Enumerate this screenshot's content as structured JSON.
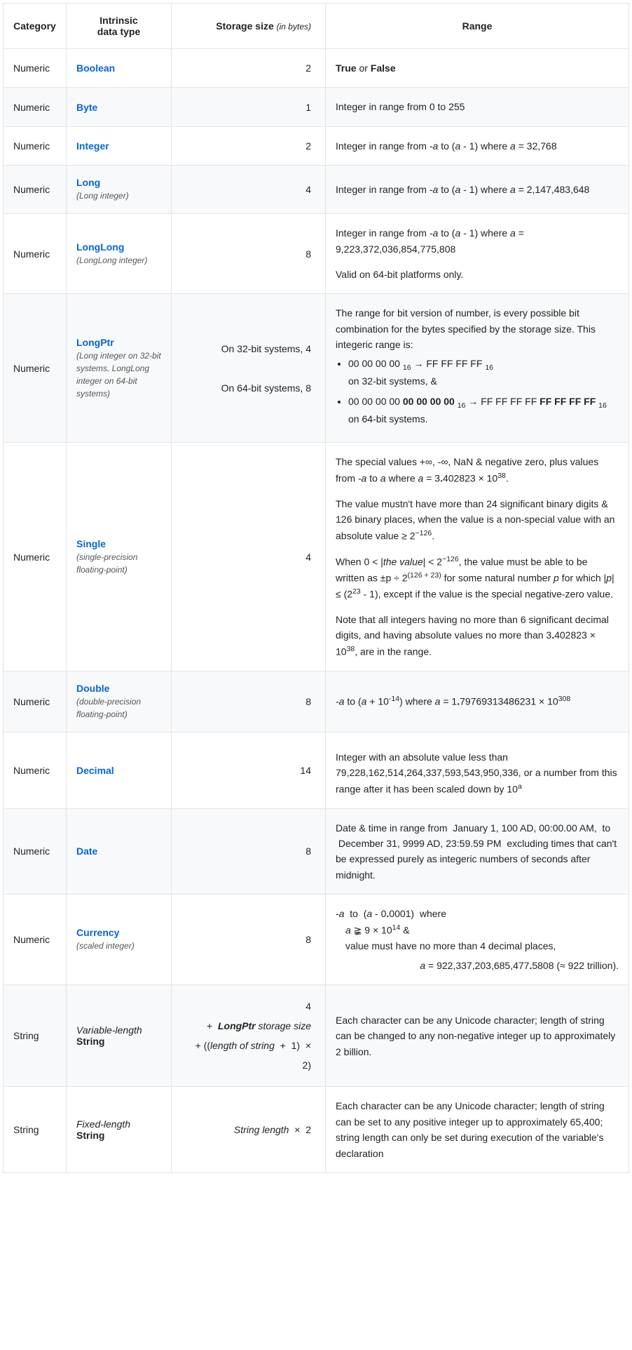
{
  "headers": {
    "category": "Category",
    "datatype_line1": "Intrinsic",
    "datatype_line2": "data type",
    "storage": "Storage size ",
    "storage_suffix": "(in bytes)",
    "range": "Range"
  },
  "rows": [
    {
      "category": "Numeric",
      "type_link": "Boolean",
      "type_sub": "",
      "storage_html": "2",
      "range_html": "<span class='bold'>True</span> or <span class='bold'>False</span>"
    },
    {
      "category": "Numeric",
      "type_link": "Byte",
      "type_sub": "",
      "storage_html": "1",
      "range_html": "Integer in range from 0 to 255"
    },
    {
      "category": "Numeric",
      "type_link": "Integer",
      "type_sub": "",
      "storage_html": "2",
      "range_html": "Integer in range from <span class='ital'>-a</span> to (<span class='ital'>a</span> - 1) where <span class='ital'>a</span> = 32,768"
    },
    {
      "category": "Numeric",
      "type_link": "Long",
      "type_sub": "(Long integer)",
      "storage_html": "4",
      "range_html": "Integer in range from <span class='ital'>-a</span> to (<span class='ital'>a</span> - 1) where <span class='ital'>a</span> = 2,147,483,648"
    },
    {
      "category": "Numeric",
      "type_link": "LongLong",
      "type_sub": "(LongLong integer)",
      "storage_html": "8",
      "range_html": "<p>Integer in range from <span class='ital'>-a</span> to (<span class='ital'>a</span> - 1) where <span class='ital'>a</span> = 9,223,372,036,854,775,808</p><p>Valid on 64-bit platforms only.</p>"
    },
    {
      "category": "Numeric",
      "type_link": "LongPtr",
      "type_sub": "(Long integer on 32-bit systems, LongLong integer on 64-bit systems)",
      "storage_html": "On 32-bit systems, 4<br><br>On 64-bit systems, 8",
      "range_html": "The range for bit version of number, is every possible bit combination for the bytes specified by the storage size. This integeric range is:<ul><li>00 00 00 00 <span class='subhex'>16</span> → FF FF FF FF <span class='subhex'>16</span><br>on 32-bit systems, &amp;</li><li>00 00 00 00 <span class='bold'>00 00 00 00</span> <span class='subhex'>16</span> → FF FF FF FF <span class='bold'>FF FF FF FF</span> <span class='subhex'>16</span><br>on 64-bit systems.</li></ul>"
    },
    {
      "category": "Numeric",
      "type_link": "Single",
      "type_sub": "(single-precision floating-point)",
      "storage_html": "4",
      "range_html": "<p>The special values +∞, -∞, NaN &amp; negative zero, plus values from <span class='ital'>-a</span> to <span class='ital'>a</span> where <span class='ital'>a</span> = 3<span class='bold'>.</span>402823 × 10<span class='sup'>38</span>.</p><p>The value mustn't have more than 24 significant binary digits &amp; 126 binary places, when the value is a non-special value with an absolute value ≥ 2<span class='sup'>−126</span>.</p><p>When 0 &lt; |<span class='ital'>the value</span>| &lt; 2<span class='sup'>−126</span>, the value must be able to be written as ±p ÷ 2<span class='sup'>(126 + 23)</span> for some natural number <span class='ital'>p</span> for which |<span class='ital'>p</span>| ≤ (2<span class='sup'>23</span> - 1), except if the value is the special negative-zero value.</p><p>Note that all integers having no more than 6 significant decimal digits, and having absolute values no more than 3<span class='bold'>.</span>402823 × 10<span class='sup'>38</span>, are in the range.</p>"
    },
    {
      "category": "Numeric",
      "type_link": "Double",
      "type_sub": "(double-precision floating-point)",
      "storage_html": "8",
      "range_html": "<span class='ital'>-a</span> to (<span class='ital'>a</span> + 10<span class='sup'>-14</span>) where <span class='ital'>a</span> = 1<span class='bold'>.</span>79769313486231 × 10<span class='sup'>308</span>"
    },
    {
      "category": "Numeric",
      "type_link": "Decimal",
      "type_sub": "",
      "storage_html": "14",
      "range_html": "Integer with an absolute value less than 79,228,162,514,264,337,593,543,950,336, or a number from this range after it has been scaled down by 10<span class='sup'>a</span>",
      "truncated": true
    },
    {
      "category": "Numeric",
      "type_link": "Date",
      "type_sub": "",
      "storage_html": "8",
      "range_html": "Date &amp; time in range from &nbsp;January 1, 100 AD, 00:00.00 AM, &nbsp;to &nbsp;December 31, 9999 AD, 23:59.59 PM &nbsp;excluding times that can't be expressed purely as integeric numbers of seconds after midnight."
    },
    {
      "category": "Numeric",
      "type_link": "Currency",
      "type_sub": "(scaled integer)",
      "storage_html": "8",
      "range_html": "<span class='ital'>-a</span> &nbsp;to &nbsp;(<span class='ital'>a</span> - 0<span class='bold'>.</span>0001) &nbsp;where<span class='indent'><span class='ital'>a</span> ≩ 9 × 10<span class='sup'>14</span> &amp;</span><span class='indent'>value must have no more than 4 decimal places,</span><div class='formula-right'><span class='ital'>a</span> = 922,337,203,685,477<span class='bold'>.</span>5808 (≈ 922 trillion).</div>"
    },
    {
      "category": "String",
      "type_plain_ital": "Variable-length",
      "type_plain_bold": "String",
      "storage_html": "4<br>+ &nbsp;<span class='bold ital'>LongPtr</span> <span class='ital'>storage size</span><br>+ ((<span class='ital'>length of string</span> &nbsp;+ &nbsp;1) &nbsp;× &nbsp;2)",
      "range_html": "Each character can be any Unicode character; length of string can be changed to any non-negative integer up to approximately 2 billion."
    },
    {
      "category": "String",
      "type_plain_ital": "Fixed-length",
      "type_plain_bold": "String",
      "storage_html": "<span class='ital'>String length</span> &nbsp;× &nbsp;2",
      "range_html": "Each character can be any Unicode character; length of string can be set to any positive integer up to approximately 65,400; string length can only be set during execution of the variable's declaration"
    }
  ],
  "colors": {
    "link": "#0366d6",
    "border": "#e5e5e5",
    "even_bg": "#f8f9fa",
    "text": "#222222"
  }
}
